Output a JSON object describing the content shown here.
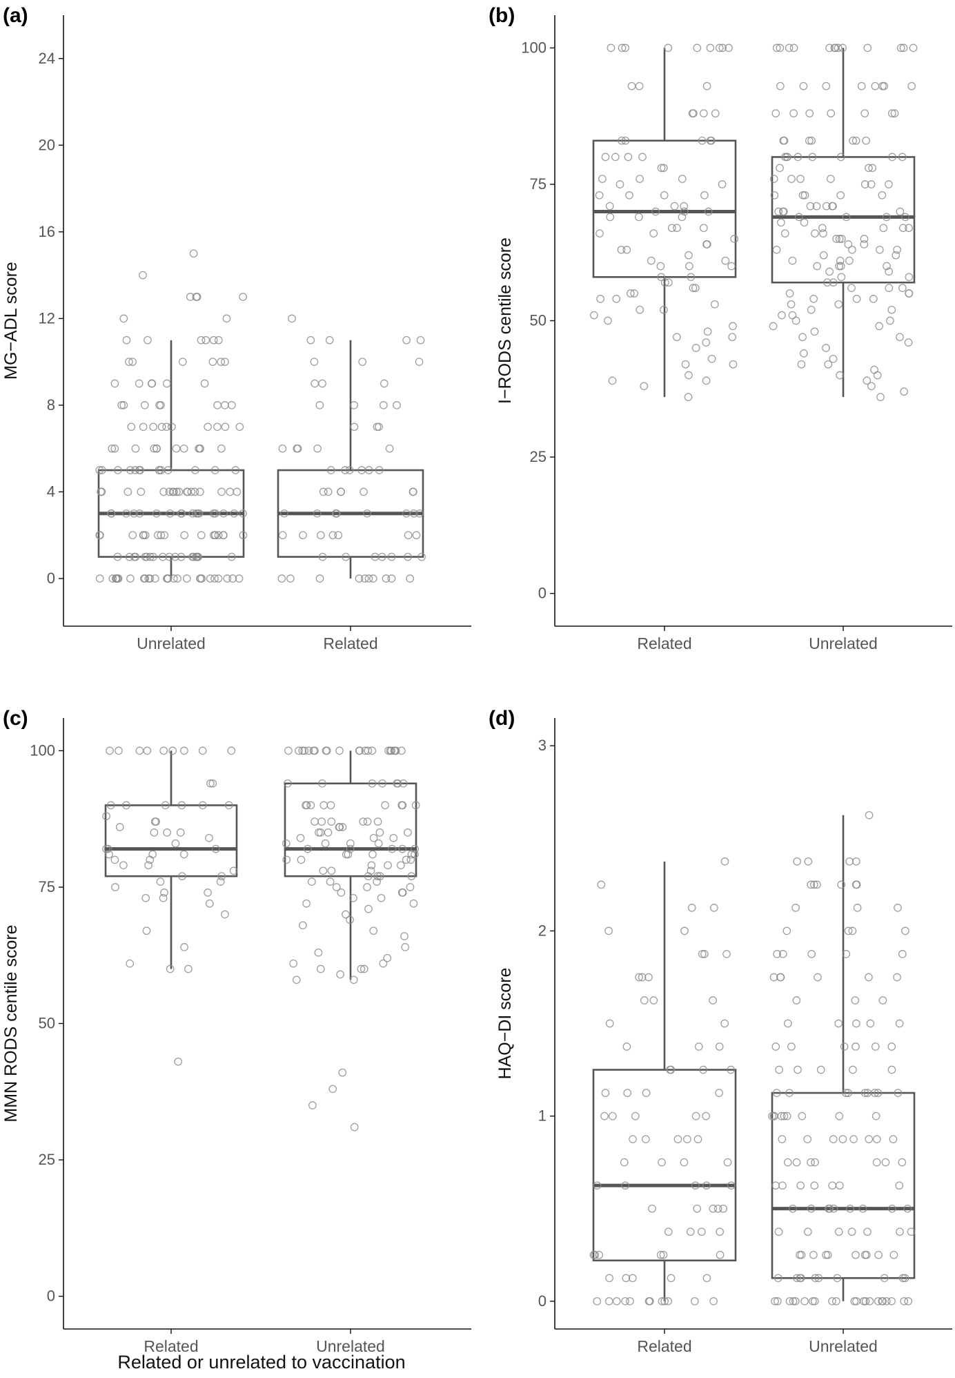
{
  "figure": {
    "xlabel": "Related or unrelated to vaccination",
    "colors": {
      "box": "#555555",
      "point": "#8c8c8c",
      "axis": "#111111",
      "tick_text": "#555555"
    }
  },
  "chart_data": [
    {
      "id": "a",
      "panel_label": "(a)",
      "type": "box",
      "ylabel": "MG−ADL score",
      "ylim": [
        -2.2,
        26
      ],
      "yticks": [
        0,
        4,
        8,
        12,
        16,
        20,
        24
      ],
      "categories": [
        "Unrelated",
        "Related"
      ],
      "boxes": [
        {
          "category": "Unrelated",
          "min": 0,
          "q1": 1,
          "median": 3,
          "q3": 5,
          "max": 11
        },
        {
          "category": "Related",
          "min": 0,
          "q1": 1,
          "median": 3,
          "q3": 5,
          "max": 11
        }
      ],
      "points": [
        {
          "category": "Unrelated",
          "values": [
            15,
            14,
            13,
            13,
            13,
            13,
            12,
            12,
            11,
            11,
            11,
            11,
            11,
            11,
            10,
            10,
            10,
            10,
            10,
            10,
            9,
            9,
            9,
            9,
            9,
            9,
            8,
            8,
            8,
            8,
            8,
            8,
            8,
            8,
            7,
            7,
            7,
            7,
            7,
            7,
            7,
            7,
            7,
            7,
            6,
            6,
            6,
            6,
            6,
            6,
            6,
            6,
            6,
            6,
            6,
            6,
            5,
            5,
            5,
            5,
            5,
            5,
            5,
            5,
            5,
            5,
            5,
            5,
            5,
            5,
            4,
            4,
            4,
            4,
            4,
            4,
            4,
            4,
            4,
            4,
            4,
            4,
            4,
            4,
            4,
            4,
            4,
            4,
            3,
            3,
            3,
            3,
            3,
            3,
            3,
            3,
            3,
            3,
            3,
            3,
            3,
            3,
            3,
            3,
            3,
            3,
            2,
            2,
            2,
            2,
            2,
            2,
            2,
            2,
            2,
            2,
            2,
            2,
            2,
            2,
            2,
            2,
            2,
            2,
            1,
            1,
            1,
            1,
            1,
            1,
            1,
            1,
            1,
            1,
            1,
            1,
            1,
            1,
            1,
            1,
            1,
            1,
            1,
            1,
            0,
            0,
            0,
            0,
            0,
            0,
            0,
            0,
            0,
            0,
            0,
            0,
            0,
            0,
            0,
            0,
            0,
            0,
            0,
            0,
            0,
            0,
            0,
            0,
            0,
            0,
            0,
            0
          ]
        },
        {
          "category": "Related",
          "values": [
            12,
            11,
            11,
            11,
            11,
            10,
            10,
            10,
            9,
            9,
            9,
            8,
            8,
            8,
            8,
            7,
            7,
            7,
            6,
            6,
            6,
            6,
            6,
            5,
            5,
            5,
            5,
            5,
            5,
            4,
            4,
            4,
            4,
            4,
            4,
            4,
            3,
            3,
            3,
            3,
            3,
            3,
            3,
            3,
            3,
            2,
            2,
            2,
            2,
            2,
            2,
            2,
            1,
            1,
            1,
            1,
            1,
            1,
            1,
            0,
            0,
            0,
            0,
            0,
            0,
            0,
            0,
            0,
            0
          ]
        }
      ]
    },
    {
      "id": "b",
      "panel_label": "(b)",
      "type": "box",
      "ylabel": "I−RODS centile score",
      "ylim": [
        -6,
        106
      ],
      "yticks": [
        0,
        25,
        50,
        75,
        100
      ],
      "categories": [
        "Related",
        "Unrelated"
      ],
      "boxes": [
        {
          "category": "Related",
          "min": 36,
          "q1": 58,
          "median": 70,
          "q3": 83,
          "max": 100
        },
        {
          "category": "Unrelated",
          "min": 36,
          "q1": 57,
          "median": 69,
          "q3": 80,
          "max": 100
        }
      ],
      "points": [
        {
          "category": "Related",
          "values": [
            100,
            100,
            100,
            100,
            100,
            100,
            100,
            100,
            100,
            93,
            93,
            93,
            88,
            88,
            88,
            88,
            83,
            83,
            83,
            83,
            83,
            80,
            80,
            80,
            80,
            78,
            78,
            76,
            76,
            76,
            75,
            75,
            73,
            73,
            73,
            73,
            71,
            71,
            71,
            70,
            70,
            70,
            69,
            69,
            69,
            67,
            67,
            67,
            66,
            66,
            65,
            64,
            64,
            63,
            63,
            62,
            61,
            61,
            60,
            60,
            60,
            58,
            58,
            57,
            57,
            56,
            56,
            55,
            55,
            54,
            54,
            53,
            52,
            52,
            51,
            50,
            49,
            48,
            47,
            47,
            46,
            45,
            43,
            42,
            42,
            40,
            39,
            39,
            38,
            36
          ]
        },
        {
          "category": "Unrelated",
          "values": [
            100,
            100,
            100,
            100,
            100,
            100,
            100,
            100,
            100,
            100,
            100,
            100,
            100,
            93,
            93,
            93,
            93,
            93,
            93,
            93,
            93,
            88,
            88,
            88,
            88,
            88,
            88,
            88,
            83,
            83,
            83,
            83,
            83,
            83,
            83,
            80,
            80,
            80,
            80,
            80,
            80,
            80,
            80,
            78,
            78,
            78,
            76,
            76,
            76,
            76,
            75,
            75,
            75,
            73,
            73,
            73,
            73,
            73,
            71,
            71,
            71,
            71,
            71,
            70,
            70,
            70,
            70,
            69,
            69,
            69,
            69,
            68,
            68,
            67,
            67,
            67,
            67,
            66,
            66,
            66,
            65,
            65,
            65,
            65,
            64,
            64,
            63,
            63,
            63,
            63,
            62,
            62,
            61,
            61,
            61,
            60,
            60,
            60,
            60,
            59,
            59,
            58,
            58,
            57,
            57,
            56,
            56,
            56,
            55,
            55,
            55,
            54,
            54,
            54,
            53,
            53,
            52,
            52,
            51,
            51,
            50,
            50,
            49,
            49,
            48,
            47,
            47,
            46,
            45,
            44,
            43,
            42,
            42,
            41,
            40,
            40,
            39,
            38,
            37,
            36
          ]
        }
      ]
    },
    {
      "id": "c",
      "panel_label": "(c)",
      "type": "box",
      "ylabel": "MMN RODS centile score",
      "ylim": [
        -6,
        106
      ],
      "yticks": [
        0,
        25,
        50,
        75,
        100
      ],
      "categories": [
        "Related",
        "Unrelated"
      ],
      "boxes": [
        {
          "category": "Related",
          "min": 60,
          "q1": 77,
          "median": 82,
          "q3": 90,
          "max": 100
        },
        {
          "category": "Unrelated",
          "min": 58,
          "q1": 77,
          "median": 82,
          "q3": 94,
          "max": 100
        }
      ],
      "points": [
        {
          "category": "Related",
          "values": [
            100,
            100,
            100,
            100,
            100,
            100,
            100,
            100,
            100,
            94,
            94,
            90,
            90,
            90,
            90,
            90,
            90,
            88,
            87,
            87,
            86,
            85,
            85,
            85,
            84,
            83,
            82,
            82,
            82,
            81,
            81,
            81,
            80,
            80,
            79,
            79,
            78,
            77,
            77,
            76,
            76,
            75,
            74,
            74,
            73,
            73,
            72,
            70,
            67,
            64,
            61,
            60,
            60,
            43
          ]
        },
        {
          "category": "Unrelated",
          "values": [
            100,
            100,
            100,
            100,
            100,
            100,
            100,
            100,
            100,
            100,
            100,
            100,
            100,
            100,
            100,
            100,
            100,
            100,
            100,
            100,
            100,
            100,
            94,
            94,
            94,
            94,
            94,
            94,
            94,
            90,
            90,
            90,
            90,
            90,
            90,
            90,
            90,
            90,
            87,
            87,
            87,
            87,
            87,
            87,
            86,
            86,
            86,
            85,
            85,
            85,
            85,
            85,
            84,
            84,
            84,
            83,
            83,
            83,
            83,
            82,
            82,
            82,
            82,
            82,
            81,
            81,
            81,
            81,
            81,
            80,
            80,
            80,
            80,
            79,
            79,
            79,
            78,
            78,
            78,
            77,
            77,
            77,
            77,
            76,
            76,
            76,
            75,
            75,
            75,
            74,
            74,
            74,
            73,
            73,
            72,
            72,
            71,
            70,
            69,
            68,
            67,
            66,
            64,
            63,
            62,
            61,
            61,
            60,
            60,
            60,
            59,
            58,
            58,
            41,
            38,
            35,
            31
          ]
        }
      ]
    },
    {
      "id": "d",
      "panel_label": "(d)",
      "type": "box",
      "ylabel": "HAQ−DI score",
      "ylim": [
        -0.15,
        3.15
      ],
      "yticks": [
        0,
        1,
        2,
        3
      ],
      "categories": [
        "Related",
        "Unrelated"
      ],
      "boxes": [
        {
          "category": "Related",
          "min": 0,
          "q1": 0.22,
          "median": 0.625,
          "q3": 1.25,
          "max": 2.375
        },
        {
          "category": "Unrelated",
          "min": 0,
          "q1": 0.125,
          "median": 0.5,
          "q3": 1.125,
          "max": 2.625
        }
      ],
      "points": [
        {
          "category": "Related",
          "values": [
            2.375,
            2.25,
            2.125,
            2.125,
            2,
            2,
            1.875,
            1.875,
            1.875,
            1.75,
            1.75,
            1.75,
            1.625,
            1.625,
            1.625,
            1.5,
            1.5,
            1.375,
            1.375,
            1.375,
            1.25,
            1.25,
            1.25,
            1.25,
            1.125,
            1.125,
            1.125,
            1.125,
            1,
            1,
            1,
            1,
            1,
            0.875,
            0.875,
            0.875,
            0.875,
            0.875,
            0.75,
            0.75,
            0.75,
            0.75,
            0.625,
            0.625,
            0.625,
            0.625,
            0.625,
            0.5,
            0.5,
            0.5,
            0.5,
            0.5,
            0.375,
            0.375,
            0.375,
            0.375,
            0.25,
            0.25,
            0.25,
            0.25,
            0.25,
            0.25,
            0.125,
            0.125,
            0.125,
            0.125,
            0.125,
            0,
            0,
            0,
            0,
            0,
            0,
            0,
            0,
            0,
            0,
            0,
            0
          ]
        },
        {
          "category": "Unrelated",
          "values": [
            2.625,
            2.375,
            2.375,
            2.375,
            2.375,
            2.25,
            2.25,
            2.25,
            2.25,
            2.25,
            2.25,
            2.125,
            2.125,
            2.125,
            2,
            2,
            2,
            2,
            1.875,
            1.875,
            1.875,
            1.875,
            1.875,
            1.75,
            1.75,
            1.75,
            1.75,
            1.75,
            1.75,
            1.625,
            1.625,
            1.625,
            1.5,
            1.5,
            1.5,
            1.5,
            1.5,
            1.375,
            1.375,
            1.375,
            1.375,
            1.375,
            1.375,
            1.25,
            1.25,
            1.25,
            1.25,
            1.25,
            1.125,
            1.125,
            1.125,
            1.125,
            1.125,
            1.125,
            1.125,
            1.125,
            1.125,
            1,
            1,
            1,
            1,
            1,
            1,
            1,
            1,
            1,
            0.875,
            0.875,
            0.875,
            0.875,
            0.875,
            0.875,
            0.875,
            0.875,
            0.75,
            0.75,
            0.75,
            0.75,
            0.75,
            0.75,
            0.75,
            0.625,
            0.625,
            0.625,
            0.625,
            0.625,
            0.625,
            0.625,
            0.5,
            0.5,
            0.5,
            0.5,
            0.5,
            0.5,
            0.5,
            0.5,
            0.5,
            0.375,
            0.375,
            0.375,
            0.375,
            0.375,
            0.375,
            0.375,
            0.25,
            0.25,
            0.25,
            0.25,
            0.25,
            0.25,
            0.25,
            0.25,
            0.25,
            0.25,
            0.125,
            0.125,
            0.125,
            0.125,
            0.125,
            0.125,
            0.125,
            0.125,
            0.125,
            0.125,
            0,
            0,
            0,
            0,
            0,
            0,
            0,
            0,
            0,
            0,
            0,
            0,
            0,
            0,
            0,
            0,
            0,
            0,
            0,
            0,
            0,
            0
          ]
        }
      ]
    }
  ]
}
